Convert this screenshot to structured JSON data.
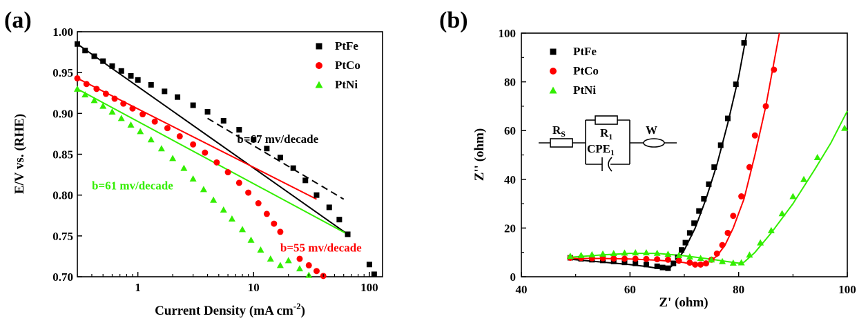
{
  "panels": {
    "a": {
      "label": "(a)"
    },
    "b": {
      "label": "(b)"
    }
  },
  "chart_data": [
    {
      "type": "scatter",
      "panel": "a",
      "title": "",
      "xlabel": "Current Density (mA cm",
      "xlabel_sup": "-2",
      "xlabel_end": ")",
      "ylabel": "E/V vs. (RHE)",
      "xscale": "log",
      "xlim": [
        0.3,
        130
      ],
      "ylim": [
        0.7,
        1.0
      ],
      "xticks": [
        {
          "v": 1,
          "label": "1"
        },
        {
          "v": 10,
          "label": "10"
        },
        {
          "v": 100,
          "label": "100"
        }
      ],
      "yticks": [
        {
          "v": 0.7,
          "label": "0.70"
        },
        {
          "v": 0.75,
          "label": "0.75"
        },
        {
          "v": 0.8,
          "label": "0.80"
        },
        {
          "v": 0.85,
          "label": "0.85"
        },
        {
          "v": 0.9,
          "label": "0.90"
        },
        {
          "v": 0.95,
          "label": "0.95"
        },
        {
          "v": 1.0,
          "label": "1.00"
        }
      ],
      "legend_position": "top-right",
      "series": [
        {
          "name": "PtFe",
          "color": "#000000",
          "marker": "square",
          "x": [
            0.3,
            0.35,
            0.42,
            0.5,
            0.6,
            0.72,
            0.87,
            1.0,
            1.3,
            1.7,
            2.2,
            3.0,
            4.0,
            5.5,
            7.5,
            10,
            13,
            17,
            22,
            28,
            35,
            45,
            55,
            65,
            100,
            110
          ],
          "y": [
            0.985,
            0.977,
            0.97,
            0.964,
            0.958,
            0.952,
            0.946,
            0.941,
            0.935,
            0.927,
            0.92,
            0.91,
            0.902,
            0.891,
            0.88,
            0.868,
            0.857,
            0.846,
            0.833,
            0.818,
            0.8,
            0.785,
            0.77,
            0.752,
            0.715,
            0.703
          ],
          "fit": {
            "x": [
              0.3,
              65
            ],
            "y": [
              0.985,
              0.752
            ]
          },
          "tafel": {
            "x": [
              4,
              60
            ],
            "y": [
              0.894,
              0.795
            ]
          }
        },
        {
          "name": "PtCo",
          "color": "#ff0000",
          "marker": "circle",
          "x": [
            0.3,
            0.36,
            0.44,
            0.53,
            0.63,
            0.75,
            0.9,
            1.1,
            1.4,
            1.8,
            2.3,
            3.0,
            3.8,
            4.8,
            6.0,
            7.5,
            9.0,
            11,
            13,
            15,
            17,
            25,
            30,
            35,
            40
          ],
          "y": [
            0.943,
            0.936,
            0.93,
            0.924,
            0.918,
            0.912,
            0.906,
            0.899,
            0.89,
            0.882,
            0.872,
            0.862,
            0.852,
            0.84,
            0.828,
            0.815,
            0.803,
            0.79,
            0.777,
            0.765,
            0.755,
            0.722,
            0.714,
            0.707,
            0.701
          ],
          "fit": {
            "x": [
              0.3,
              35
            ],
            "y": [
              0.943,
              0.795
            ]
          }
        },
        {
          "name": "PtNi",
          "color": "#33ee00",
          "marker": "triangle",
          "x": [
            0.3,
            0.35,
            0.42,
            0.5,
            0.6,
            0.72,
            0.87,
            1.05,
            1.3,
            1.6,
            2.0,
            2.5,
            3.0,
            3.7,
            4.5,
            5.5,
            6.5,
            8.0,
            9.5,
            11.5,
            14,
            17,
            20,
            25,
            30
          ],
          "y": [
            0.93,
            0.923,
            0.916,
            0.909,
            0.902,
            0.894,
            0.886,
            0.878,
            0.868,
            0.857,
            0.845,
            0.833,
            0.82,
            0.807,
            0.794,
            0.782,
            0.771,
            0.758,
            0.745,
            0.733,
            0.722,
            0.714,
            0.72,
            0.71,
            0.702
          ],
          "fit": {
            "x": [
              0.3,
              65
            ],
            "y": [
              0.93,
              0.752
            ]
          }
        }
      ],
      "annotations": [
        {
          "text": "b=67 mv/decade",
          "color": "#000000",
          "x": 7.2,
          "y": 0.864
        },
        {
          "text": "b=61 mv/decade",
          "color": "#33ee00",
          "x": 0.4,
          "y": 0.807
        },
        {
          "text": "b=55 mv/decade",
          "color": "#ff0000",
          "x": 17,
          "y": 0.731
        }
      ]
    },
    {
      "type": "scatter",
      "panel": "b",
      "title": "",
      "xlabel": "Z' (ohm)",
      "ylabel": "Z'' (ohm)",
      "xlim": [
        40,
        100
      ],
      "ylim": [
        0,
        100
      ],
      "xticks": [
        {
          "v": 40,
          "label": "40"
        },
        {
          "v": 60,
          "label": "60"
        },
        {
          "v": 80,
          "label": "80"
        },
        {
          "v": 100,
          "label": "100"
        }
      ],
      "yticks": [
        {
          "v": 0,
          "label": "0"
        },
        {
          "v": 20,
          "label": "20"
        },
        {
          "v": 40,
          "label": "40"
        },
        {
          "v": 60,
          "label": "60"
        },
        {
          "v": 80,
          "label": "80"
        },
        {
          "v": 100,
          "label": "100"
        }
      ],
      "legend_position": "top-left",
      "series": [
        {
          "name": "PtFe",
          "color": "#000000",
          "marker": "square",
          "x": [
            49,
            51,
            53,
            55,
            57,
            59,
            61,
            63,
            65,
            66,
            67,
            68,
            68.8,
            69.5,
            70.2,
            71,
            71.8,
            72.7,
            73.6,
            74.5,
            75.5,
            76.7,
            78,
            79.5,
            81
          ],
          "y": [
            7.8,
            7.4,
            7.0,
            6.7,
            6.3,
            5.9,
            5.5,
            5.0,
            4.3,
            3.8,
            3.5,
            5.5,
            8.0,
            11,
            14,
            18,
            22,
            27,
            32,
            38,
            45,
            54,
            65,
            79,
            96
          ],
          "fit": {
            "x": [
              49,
              55,
              60,
              63,
              65,
              66.5,
              67.5,
              68.5,
              70,
              72,
              74,
              76,
              78,
              80,
              81.5
            ],
            "y": [
              7.2,
              6.0,
              5.0,
              4.2,
              3.5,
              3.2,
              4.0,
              6.0,
              11,
              20,
              32,
              46,
              63,
              82,
              100
            ]
          }
        },
        {
          "name": "PtCo",
          "color": "#ff0000",
          "marker": "circle",
          "x": [
            49,
            51,
            53,
            55,
            57,
            59,
            61,
            63,
            65,
            67,
            69,
            71,
            72,
            73,
            74,
            75,
            76,
            77,
            78,
            79,
            80.5,
            82,
            83,
            85,
            86.5
          ],
          "y": [
            7.8,
            7.7,
            7.6,
            7.6,
            7.5,
            7.4,
            7.4,
            7.3,
            7.2,
            7.0,
            6.6,
            5.8,
            5.0,
            5.0,
            5.5,
            7.0,
            9.5,
            13,
            18,
            25,
            33,
            45,
            58,
            70,
            85
          ],
          "fit": {
            "x": [
              49,
              55,
              60,
              65,
              68,
              70,
              71.5,
              73,
              74.5,
              76,
              77.5,
              79,
              81,
              83,
              85,
              87.5
            ],
            "y": [
              7.5,
              7.5,
              7.3,
              6.8,
              6.3,
              5.8,
              5.0,
              5.0,
              6.0,
              8.5,
              13,
              20,
              32,
              50,
              70,
              100
            ]
          }
        },
        {
          "name": "PtNi",
          "color": "#33ee00",
          "marker": "triangle",
          "x": [
            49,
            51,
            53,
            55,
            57,
            59,
            61,
            63,
            65,
            67,
            69,
            71,
            73,
            75,
            77,
            79,
            80.5,
            82,
            84,
            86,
            88,
            90,
            92,
            94.5,
            99.5
          ],
          "y": [
            8.5,
            8.8,
            9.1,
            9.4,
            9.6,
            9.8,
            9.9,
            9.9,
            9.7,
            9.3,
            8.8,
            8.2,
            7.6,
            7.0,
            6.3,
            5.7,
            5.8,
            9.0,
            14,
            19,
            26,
            33,
            40,
            49,
            61
          ],
          "fit": {
            "x": [
              49,
              55,
              60,
              65,
              70,
              75,
              78,
              80,
              81,
              83,
              86,
              90,
              94,
              97,
              100
            ],
            "y": [
              8.0,
              9.0,
              9.6,
              9.6,
              8.6,
              7.2,
              6.2,
              5.6,
              6.0,
              10,
              18,
              30,
              44,
              55,
              68
            ]
          }
        }
      ],
      "inset": {
        "rs": "R",
        "rs_sub": "S",
        "r1": "R",
        "r1_sub": "1",
        "cpe": "CPE",
        "cpe_sub": "1",
        "w": "W"
      }
    }
  ]
}
